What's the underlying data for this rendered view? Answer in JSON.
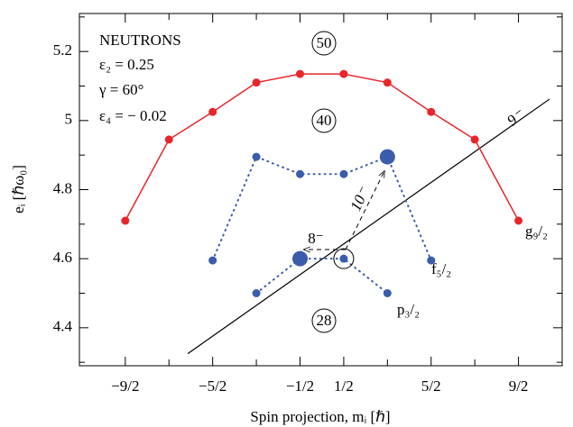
{
  "chart_data": {
    "type": "line",
    "x_label": "Spin projection, mᵢ [ℏ]",
    "y_label": "eᵢ [ℏω₀]",
    "xlim": [
      -5.55,
      5.5
    ],
    "ylim": [
      4.29,
      5.31
    ],
    "xticks": [
      {
        "value": -4.5,
        "label": "−9/2"
      },
      {
        "value": -2.5,
        "label": "−5/2"
      },
      {
        "value": -0.5,
        "label": "−1/2"
      },
      {
        "value": 0.5,
        "label": "1/2"
      },
      {
        "value": 2.5,
        "label": "5/2"
      },
      {
        "value": 4.5,
        "label": "9/2"
      }
    ],
    "xminor": [
      -3.5,
      -1.5,
      1.5,
      3.5
    ],
    "yticks": [
      4.4,
      4.6,
      4.8,
      5,
      5.2
    ],
    "yminor": [
      4.3,
      4.5,
      4.7,
      4.9,
      5.1,
      5.3
    ],
    "series": [
      {
        "name": "g₉/₂",
        "color": "#e8262a",
        "style": "solid",
        "x": [
          -4.5,
          -3.5,
          -2.5,
          -1.5,
          -0.5,
          0.5,
          1.5,
          2.5,
          3.5,
          4.5
        ],
        "values": [
          4.71,
          4.945,
          5.025,
          5.11,
          5.135,
          5.135,
          5.11,
          5.025,
          4.945,
          4.71
        ]
      },
      {
        "name": "f₅/₂",
        "color": "#3a5cab",
        "style": "dotted",
        "x": [
          -2.5,
          -1.5,
          -0.5,
          0.5,
          1.5,
          2.5
        ],
        "values": [
          4.595,
          4.895,
          4.845,
          4.845,
          4.895,
          4.595
        ],
        "large_marker": 4
      },
      {
        "name": "p₃/₂",
        "color": "#3a5cab",
        "style": "dotted",
        "x": [
          -1.5,
          -0.5,
          0.5,
          1.5
        ],
        "values": [
          4.5,
          4.6,
          4.6,
          4.5
        ],
        "large_marker": 1,
        "circled": 2
      }
    ],
    "reference_line": {
      "x": [
        -3.07,
        5.21
      ],
      "values": [
        4.325,
        5.062
      ],
      "color": "#000000",
      "label": "9⁻"
    },
    "annotations": [
      "NEUTRONS",
      "ε₂ = 0.25",
      "γ = 60°",
      "ε₄ = − 0.02",
      "50",
      "40",
      "28",
      "10⁻",
      "8⁻"
    ]
  }
}
